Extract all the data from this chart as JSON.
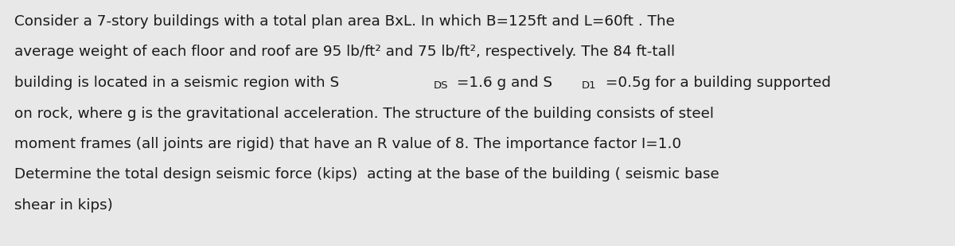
{
  "background_color": "#e8e8e8",
  "text_color": "#1a1a1a",
  "font_size": 13.2,
  "font_size_sub": 9.5,
  "line1": "Consider a 7-story buildings with a total plan area BxL. In which B=125ft and L=60ft . The",
  "line2": "average weight of each floor and roof are 95 lb/ft² and 75 lb/ft², respectively. The 84 ft-tall",
  "line3_pre": "building is located in a seismic region with S",
  "line3_sub1": "DS",
  "line3_mid": " =1.6 g and S",
  "line3_sub2": "D1",
  "line3_post": " =0.5g for a building supported",
  "line4": "on rock, where g is the gravitational acceleration. The structure of the building consists of steel",
  "line5": "moment frames (all joints are rigid) that have an R value of 8. The importance factor I=1.0",
  "line6": "Determine the total design seismic force (kips)  acting at the base of the building ( seismic base",
  "line7": "shear in kips)"
}
